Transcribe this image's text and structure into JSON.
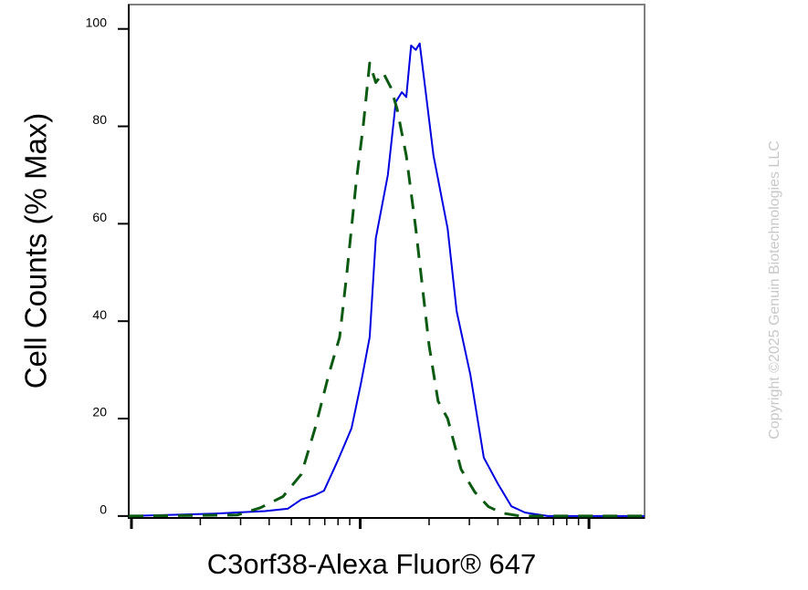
{
  "chart_data": {
    "type": "line",
    "x_label": "C3orf38-Alexa Fluor® 647",
    "y_label": "Cell Counts (% Max)",
    "watermark": "Copyright ©2025 Genuin Biotechnologies LLC",
    "x_scale": "log",
    "xlim": [
      0.973,
      175
    ],
    "xticks": [
      1,
      10,
      100
    ],
    "xminor_ticks": [
      2,
      3,
      4,
      5,
      6,
      7,
      8,
      9,
      20,
      30,
      40,
      50,
      60,
      70,
      80,
      90
    ],
    "ylim": [
      -0.4,
      105
    ],
    "yticks": [
      0,
      20,
      40,
      60,
      80,
      100
    ],
    "series": [
      {
        "color": "#0000e0",
        "dash": false,
        "x": [
          0.973,
          1.673,
          2.31,
          3.83,
          4.82,
          5.53,
          6.35,
          6.95,
          7.98,
          9.16,
          10.05,
          11.0,
          11.7,
          13.2,
          14.3,
          15.2,
          15.9,
          16.7,
          17.5,
          18.2,
          19.1,
          20.9,
          24.1,
          26.4,
          30.3,
          34.7,
          39.9,
          45.8,
          52.6,
          66.1,
          175
        ],
        "values": [
          0,
          0.3,
          0.5,
          1,
          1.5,
          3.4,
          4.3,
          5.2,
          11.4,
          18,
          27,
          36.7,
          57,
          70,
          85,
          87,
          86,
          96.6,
          95.7,
          97,
          89,
          74,
          59,
          42,
          29,
          12,
          6.7,
          2,
          0.7,
          0,
          0
        ]
      },
      {
        "color": "#0b5a12",
        "dash": true,
        "x": [
          0.973,
          2.9,
          3.66,
          4.6,
          5.53,
          6.35,
          7.28,
          8.13,
          8.75,
          9.6,
          10.3,
          11.0,
          11.7,
          12.6,
          13.6,
          14.5,
          15.9,
          17.5,
          18.6,
          20.0,
          21.9,
          24.1,
          27.6,
          31.7,
          36.4,
          41.8,
          50.2,
          175
        ],
        "values": [
          0,
          0.2,
          1.7,
          4,
          8.6,
          18,
          29,
          36.7,
          50,
          68.5,
          80,
          93,
          89,
          91,
          88,
          83.5,
          74,
          59,
          48,
          35,
          23.6,
          20,
          9.6,
          4.9,
          1.9,
          0.6,
          0,
          0
        ]
      }
    ]
  }
}
